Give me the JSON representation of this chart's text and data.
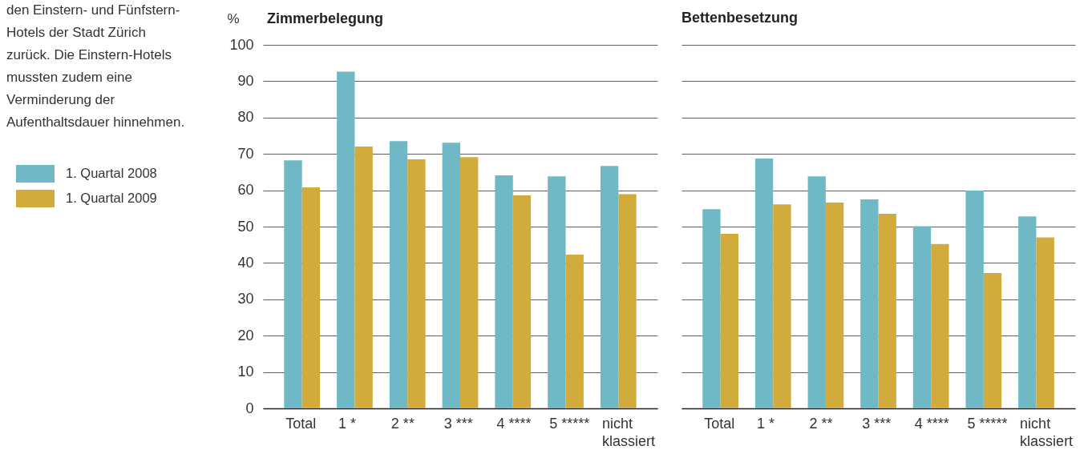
{
  "chart_data": [
    {
      "type": "bar",
      "title": "Zimmerbelegung",
      "ylabel": "%",
      "categories": [
        "Total",
        "1 *",
        "2 **",
        "3 ***",
        "4 ****",
        "5 *****",
        "nicht klassiert"
      ],
      "series": [
        {
          "name": "1. Quartal 2008",
          "color": "#6fb8c6",
          "values": [
            68.2,
            92.6,
            73.5,
            73.1,
            64.1,
            63.8,
            66.7
          ]
        },
        {
          "name": "1. Quartal 2009",
          "color": "#d1ac3d",
          "values": [
            60.8,
            72.0,
            68.5,
            69.1,
            58.6,
            42.3,
            58.9
          ]
        }
      ],
      "ylim": [
        0,
        100
      ],
      "yticks": [
        0,
        10,
        20,
        30,
        40,
        50,
        60,
        70,
        80,
        90,
        100
      ],
      "grid": "y",
      "legend": "left",
      "annotations": [
        "den Einstern- und Fünfstern-Hotels der Stadt Zürich zurück. Die Einstern-Hotels mussten zudem eine Verminderung der Aufenthaltsdauer hinnehmen."
      ]
    },
    {
      "type": "bar",
      "title": "Bettenbesetzung",
      "categories": [
        "Total",
        "1 *",
        "2 **",
        "3 ***",
        "4 ****",
        "5 *****",
        "nicht klassiert"
      ],
      "series": [
        {
          "color": "#6fb8c6",
          "values": [
            54.8,
            68.7,
            63.8,
            57.5,
            50.1,
            59.9,
            52.8
          ]
        },
        {
          "color": "#d1ac3d",
          "values": [
            48.0,
            56.1,
            56.6,
            53.5,
            45.2,
            37.2,
            47.0
          ]
        }
      ],
      "ylim": [
        0,
        100
      ],
      "yticks": [
        0,
        10,
        20,
        30,
        40,
        50,
        60,
        70,
        80,
        90,
        100
      ],
      "grid": "y",
      "tick_labels": "x"
    }
  ]
}
